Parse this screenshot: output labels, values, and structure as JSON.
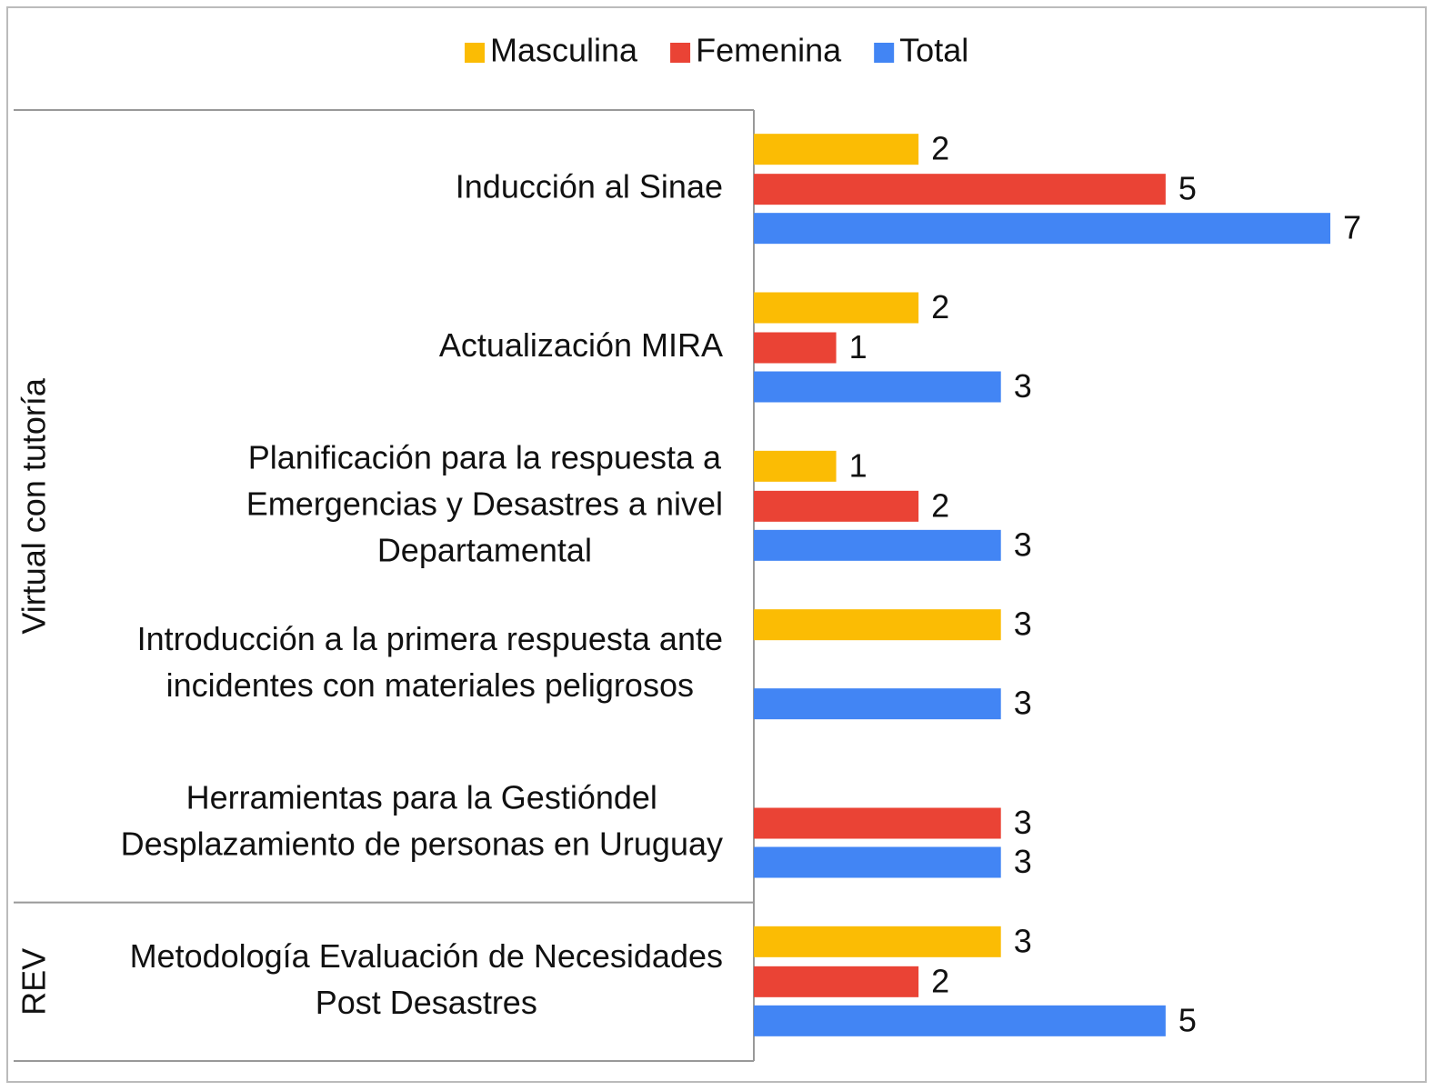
{
  "chart_data": {
    "type": "bar",
    "orientation": "horizontal",
    "categories": [
      [
        "Inducción al Sinae"
      ],
      [
        "Actualización MIRA"
      ],
      [
        "Planificación para la respuesta a",
        "Emergencias y Desastres a nivel",
        "Departamental"
      ],
      [
        "Introducción a la primera respuesta ante",
        "incidentes con materiales peligrosos"
      ],
      [
        "Herramientas para la Gestióndel",
        "Desplazamiento de personas en Uruguay"
      ],
      [
        "Metodología Evaluación de Necesidades",
        "Post Desastres"
      ]
    ],
    "category_groups": [
      "Virtual con tutoría",
      "Virtual con tutoría",
      "Virtual con tutoría",
      "Virtual con tutoría",
      "Virtual con tutoría",
      "REV"
    ],
    "series": [
      {
        "name": "Masculina",
        "color": "#fbbc04",
        "values": [
          2,
          2,
          1,
          3,
          null,
          3
        ]
      },
      {
        "name": "Femenina",
        "color": "#ea4335",
        "values": [
          5,
          1,
          2,
          null,
          3,
          2
        ]
      },
      {
        "name": "Total",
        "color": "#4285f4",
        "values": [
          7,
          3,
          3,
          3,
          3,
          5
        ]
      }
    ],
    "legend": "top",
    "data_labels": true
  }
}
